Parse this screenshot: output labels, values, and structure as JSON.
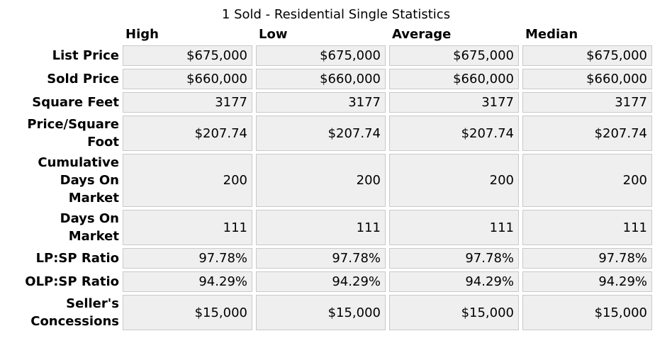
{
  "title": "1 Sold - Residential Single Statistics",
  "chart_data": {
    "type": "table",
    "title": "1 Sold - Residential Single Statistics",
    "sold_count": 1,
    "columns": [
      "High",
      "Low",
      "Average",
      "Median"
    ],
    "rows": [
      {
        "label": "List Price",
        "label_lines": [
          "List Price"
        ],
        "values": [
          "$675,000",
          "$675,000",
          "$675,000",
          "$675,000"
        ]
      },
      {
        "label": "Sold Price",
        "label_lines": [
          "Sold Price"
        ],
        "values": [
          "$660,000",
          "$660,000",
          "$660,000",
          "$660,000"
        ]
      },
      {
        "label": "Square Feet",
        "label_lines": [
          "Square Feet"
        ],
        "values": [
          "3177",
          "3177",
          "3177",
          "3177"
        ]
      },
      {
        "label": "Price/Square Foot",
        "label_lines": [
          "Price/Square",
          "Foot"
        ],
        "values": [
          "$207.74",
          "$207.74",
          "$207.74",
          "$207.74"
        ]
      },
      {
        "label": "Cumulative Days On Market",
        "label_lines": [
          "Cumulative",
          "Days On",
          "Market"
        ],
        "values": [
          "200",
          "200",
          "200",
          "200"
        ]
      },
      {
        "label": "Days On Market",
        "label_lines": [
          "Days On",
          "Market"
        ],
        "values": [
          "111",
          "111",
          "111",
          "111"
        ]
      },
      {
        "label": "LP:SP Ratio",
        "label_lines": [
          "LP:SP Ratio"
        ],
        "values": [
          "97.78%",
          "97.78%",
          "97.78%",
          "97.78%"
        ]
      },
      {
        "label": "OLP:SP Ratio",
        "label_lines": [
          "OLP:SP Ratio"
        ],
        "values": [
          "94.29%",
          "94.29%",
          "94.29%",
          "94.29%"
        ]
      },
      {
        "label": "Seller's Concessions",
        "label_lines": [
          "Seller's",
          "Concessions"
        ],
        "values": [
          "$15,000",
          "$15,000",
          "$15,000",
          "$15,000"
        ]
      }
    ]
  },
  "colors": {
    "cell_bg": "#efefef",
    "cell_border": "#c9c9c9",
    "text": "#000000",
    "page_bg": "#ffffff"
  }
}
